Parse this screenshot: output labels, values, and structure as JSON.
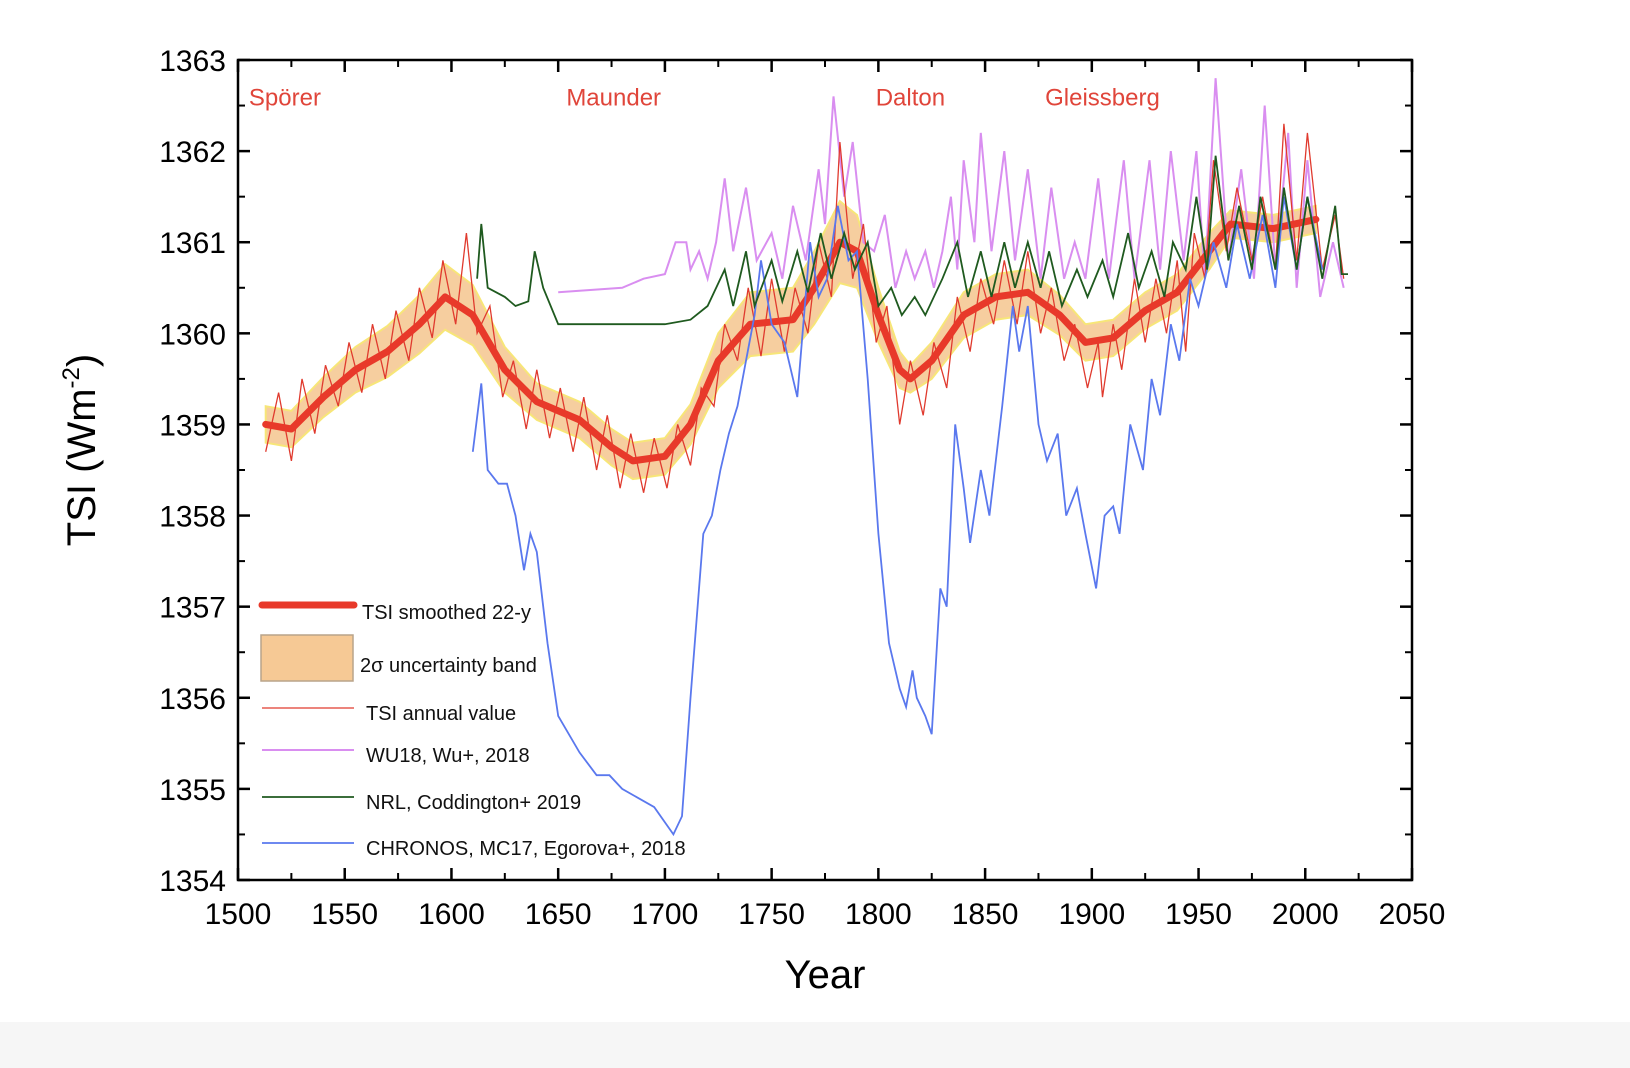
{
  "chart_data": {
    "type": "line",
    "xlabel": "Year",
    "ylabel": {
      "main": "TSI (Wm",
      "sup": "-2",
      "end": ")"
    },
    "xlim": [
      1500,
      2050
    ],
    "ylim": [
      1354,
      1363
    ],
    "xticks": [
      1500,
      1550,
      1600,
      1650,
      1700,
      1750,
      1800,
      1850,
      1900,
      1950,
      2000,
      2050
    ],
    "yticks": [
      1354,
      1355,
      1356,
      1357,
      1358,
      1359,
      1360,
      1361,
      1362,
      1363
    ],
    "grid": false,
    "legend_placement": "bottom-left",
    "annotations": [
      {
        "text": "Spörer",
        "year": 1522,
        "value": 1362.6
      },
      {
        "text": "Maunder",
        "year": 1676,
        "value": 1362.6
      },
      {
        "text": "Dalton",
        "year": 1815,
        "value": 1362.6
      },
      {
        "text": "Gleissberg",
        "year": 1905,
        "value": 1362.6
      }
    ],
    "colors": {
      "smoothed": "#e8392a",
      "band": "#f6c995",
      "band_edge": "#f7e46a",
      "annual": "#e03a2e",
      "wu18": "#d98ef0",
      "nrl": "#1f5a1f",
      "chronos": "#5a78ee",
      "annotation": "#e0453a"
    },
    "series": [
      {
        "key": "band",
        "name": "2σ uncertainty band",
        "x": [
          1513,
          1525,
          1540,
          1555,
          1570,
          1585,
          1597,
          1610,
          1625,
          1640,
          1660,
          1675,
          1685,
          1700,
          1712,
          1725,
          1740,
          1760,
          1770,
          1782,
          1790,
          1800,
          1810,
          1815,
          1825,
          1840,
          1855,
          1870,
          1885,
          1897,
          1910,
          1925,
          1940,
          1955,
          1965,
          1985,
          2005
        ],
        "half_width": [
          0.2,
          0.2,
          0.22,
          0.25,
          0.28,
          0.32,
          0.36,
          0.33,
          0.25,
          0.2,
          0.2,
          0.2,
          0.2,
          0.2,
          0.22,
          0.3,
          0.35,
          0.35,
          0.4,
          0.45,
          0.4,
          0.3,
          0.2,
          0.15,
          0.2,
          0.25,
          0.25,
          0.25,
          0.22,
          0.2,
          0.2,
          0.2,
          0.2,
          0.2,
          0.15,
          0.15,
          0.15
        ]
      },
      {
        "key": "smoothed",
        "name": "TSI smoothed 22-y",
        "x": [
          1513,
          1525,
          1540,
          1555,
          1570,
          1585,
          1597,
          1610,
          1625,
          1640,
          1660,
          1675,
          1685,
          1700,
          1712,
          1725,
          1740,
          1760,
          1770,
          1782,
          1790,
          1800,
          1810,
          1815,
          1825,
          1840,
          1855,
          1870,
          1885,
          1897,
          1910,
          1925,
          1940,
          1955,
          1965,
          1985,
          2005
        ],
        "y": [
          1359.0,
          1358.95,
          1359.3,
          1359.6,
          1359.8,
          1360.1,
          1360.4,
          1360.2,
          1359.6,
          1359.25,
          1359.05,
          1358.75,
          1358.6,
          1358.65,
          1359.0,
          1359.7,
          1360.1,
          1360.15,
          1360.5,
          1361.0,
          1360.9,
          1360.2,
          1359.6,
          1359.5,
          1359.7,
          1360.2,
          1360.4,
          1360.45,
          1360.2,
          1359.9,
          1359.95,
          1360.25,
          1360.45,
          1360.9,
          1361.2,
          1361.15,
          1361.25
        ]
      },
      {
        "key": "annual",
        "name": "TSI annual value",
        "x": [
          1513,
          1519,
          1525,
          1530,
          1536,
          1541,
          1547,
          1552,
          1558,
          1563,
          1569,
          1574,
          1580,
          1585,
          1591,
          1596,
          1602,
          1607,
          1612,
          1618,
          1624,
          1629,
          1635,
          1640,
          1646,
          1651,
          1657,
          1662,
          1668,
          1673,
          1679,
          1684,
          1690,
          1695,
          1701,
          1706,
          1712,
          1717,
          1723,
          1728,
          1734,
          1739,
          1745,
          1750,
          1756,
          1761,
          1767,
          1772,
          1778,
          1782,
          1788,
          1793,
          1799,
          1804,
          1810,
          1815,
          1821,
          1826,
          1832,
          1837,
          1843,
          1848,
          1854,
          1859,
          1865,
          1870,
          1876,
          1881,
          1887,
          1892,
          1898,
          1903,
          1905,
          1910,
          1914,
          1920,
          1925,
          1930,
          1935,
          1940,
          1944,
          1948,
          1953,
          1957,
          1963,
          1968,
          1975,
          1980,
          1986,
          1990,
          1996,
          2001,
          2008,
          2014,
          2018
        ],
        "y": [
          1358.7,
          1359.35,
          1358.6,
          1359.5,
          1358.9,
          1359.65,
          1359.2,
          1359.9,
          1359.35,
          1360.1,
          1359.5,
          1360.25,
          1359.7,
          1360.5,
          1359.95,
          1360.8,
          1360.1,
          1361.1,
          1360.0,
          1360.3,
          1359.3,
          1359.7,
          1358.95,
          1359.6,
          1358.85,
          1359.4,
          1358.7,
          1359.3,
          1358.5,
          1359.1,
          1358.3,
          1358.9,
          1358.25,
          1358.85,
          1358.3,
          1359.0,
          1358.55,
          1359.4,
          1359.2,
          1360.1,
          1359.7,
          1360.5,
          1359.75,
          1360.6,
          1359.8,
          1360.5,
          1360.0,
          1361.0,
          1360.4,
          1362.1,
          1360.6,
          1361.2,
          1359.9,
          1360.3,
          1359.0,
          1359.7,
          1359.1,
          1359.9,
          1359.4,
          1360.4,
          1359.8,
          1360.6,
          1360.1,
          1360.8,
          1360.1,
          1360.9,
          1360.0,
          1360.5,
          1359.7,
          1360.1,
          1359.4,
          1359.9,
          1359.3,
          1360.1,
          1359.6,
          1360.6,
          1359.9,
          1360.6,
          1360.0,
          1360.8,
          1359.8,
          1361.1,
          1360.6,
          1361.9,
          1360.9,
          1361.6,
          1360.8,
          1361.5,
          1360.7,
          1362.3,
          1360.8,
          1362.2,
          1360.7,
          1361.3,
          1360.6
        ]
      },
      {
        "key": "wu18",
        "name": "WU18, Wu+, 2018",
        "x": [
          1650,
          1680,
          1690,
          1700,
          1705,
          1710,
          1712,
          1716,
          1720,
          1724,
          1728,
          1732,
          1738,
          1743,
          1750,
          1755,
          1760,
          1766,
          1772,
          1775,
          1779,
          1784,
          1788,
          1793,
          1798,
          1803,
          1808,
          1813,
          1817,
          1822,
          1826,
          1830,
          1834,
          1837,
          1840,
          1845,
          1848,
          1853,
          1859,
          1864,
          1870,
          1876,
          1881,
          1887,
          1892,
          1897,
          1903,
          1908,
          1915,
          1920,
          1927,
          1932,
          1937,
          1943,
          1949,
          1953,
          1958,
          1964,
          1970,
          1976,
          1981,
          1986,
          1992,
          1996,
          2001,
          2007,
          2013,
          2018
        ],
        "y": [
          1360.45,
          1360.5,
          1360.6,
          1360.65,
          1361.0,
          1361.0,
          1360.7,
          1360.9,
          1360.6,
          1361.0,
          1361.7,
          1360.9,
          1361.6,
          1360.8,
          1361.1,
          1360.6,
          1361.4,
          1360.8,
          1361.8,
          1361.2,
          1362.6,
          1361.5,
          1362.1,
          1361.0,
          1360.9,
          1361.3,
          1360.5,
          1360.9,
          1360.6,
          1360.9,
          1360.5,
          1360.9,
          1361.5,
          1360.7,
          1361.9,
          1361.0,
          1362.2,
          1360.9,
          1362.0,
          1360.8,
          1361.8,
          1360.6,
          1361.6,
          1360.6,
          1361.0,
          1360.6,
          1361.7,
          1360.6,
          1361.9,
          1360.6,
          1361.9,
          1360.7,
          1362.0,
          1360.8,
          1362.0,
          1360.6,
          1362.8,
          1360.8,
          1361.8,
          1360.6,
          1362.5,
          1360.7,
          1362.2,
          1360.5,
          1361.9,
          1360.4,
          1361.0,
          1360.5
        ]
      },
      {
        "key": "nrl",
        "name": "NRL, Coddington+ 2019",
        "x": [
          1612,
          1614,
          1617,
          1625,
          1630,
          1636,
          1639,
          1643,
          1650,
          1700,
          1712,
          1720,
          1728,
          1732,
          1738,
          1742,
          1750,
          1755,
          1762,
          1767,
          1773,
          1778,
          1784,
          1789,
          1795,
          1800,
          1806,
          1811,
          1817,
          1822,
          1830,
          1837,
          1842,
          1848,
          1853,
          1859,
          1864,
          1870,
          1876,
          1880,
          1886,
          1893,
          1898,
          1905,
          1910,
          1917,
          1922,
          1928,
          1934,
          1938,
          1944,
          1949,
          1954,
          1958,
          1964,
          1969,
          1975,
          1979,
          1986,
          1990,
          1996,
          2001,
          2008,
          2014,
          2017,
          2020
        ],
        "y": [
          1360.6,
          1361.2,
          1360.5,
          1360.4,
          1360.3,
          1360.35,
          1360.9,
          1360.5,
          1360.1,
          1360.1,
          1360.15,
          1360.3,
          1360.7,
          1360.3,
          1360.9,
          1360.3,
          1360.8,
          1360.35,
          1360.9,
          1360.45,
          1361.1,
          1360.6,
          1361.1,
          1360.7,
          1361.0,
          1360.3,
          1360.5,
          1360.2,
          1360.4,
          1360.2,
          1360.6,
          1361.0,
          1360.4,
          1360.9,
          1360.4,
          1361.0,
          1360.5,
          1361.0,
          1360.5,
          1360.9,
          1360.3,
          1360.7,
          1360.4,
          1360.8,
          1360.4,
          1361.1,
          1360.5,
          1360.9,
          1360.4,
          1361.0,
          1360.7,
          1361.5,
          1360.7,
          1361.95,
          1360.8,
          1361.4,
          1360.7,
          1361.5,
          1360.7,
          1361.6,
          1360.7,
          1361.5,
          1360.6,
          1361.4,
          1360.65,
          1360.65
        ]
      },
      {
        "key": "chronos",
        "name": "CHRONOS, MC17, Egorova+, 2018",
        "x": [
          1610,
          1614,
          1617,
          1622,
          1626,
          1630,
          1634,
          1637,
          1640,
          1645,
          1650,
          1660,
          1668,
          1674,
          1680,
          1695,
          1704,
          1708,
          1712,
          1718,
          1722,
          1726,
          1730,
          1734,
          1738,
          1742,
          1745,
          1750,
          1756,
          1762,
          1768,
          1772,
          1776,
          1781,
          1786,
          1790,
          1795,
          1800,
          1805,
          1810,
          1813,
          1816,
          1818,
          1822,
          1825,
          1829,
          1832,
          1836,
          1840,
          1843,
          1848,
          1852,
          1858,
          1863,
          1866,
          1870,
          1875,
          1879,
          1884,
          1888,
          1893,
          1897,
          1902,
          1906,
          1910,
          1913,
          1918,
          1924,
          1928,
          1932,
          1937,
          1941,
          1946,
          1950,
          1957,
          1963,
          1968,
          1974,
          1980,
          1986,
          1990,
          1996,
          2001,
          2008
        ],
        "y": [
          1358.7,
          1359.45,
          1358.5,
          1358.35,
          1358.35,
          1358.0,
          1357.4,
          1357.8,
          1357.6,
          1356.6,
          1355.8,
          1355.4,
          1355.15,
          1355.15,
          1355.0,
          1354.8,
          1354.5,
          1354.7,
          1356.0,
          1357.8,
          1358.0,
          1358.5,
          1358.9,
          1359.2,
          1359.7,
          1360.2,
          1360.8,
          1360.1,
          1359.9,
          1359.3,
          1361.0,
          1360.4,
          1360.6,
          1361.4,
          1360.8,
          1360.9,
          1359.5,
          1357.8,
          1356.6,
          1356.1,
          1355.9,
          1356.3,
          1356.0,
          1355.8,
          1355.6,
          1357.2,
          1357.0,
          1359.0,
          1358.3,
          1357.7,
          1358.5,
          1358.0,
          1359.2,
          1360.3,
          1359.8,
          1360.3,
          1359.0,
          1358.6,
          1358.9,
          1358.0,
          1358.3,
          1357.8,
          1357.2,
          1358.0,
          1358.1,
          1357.8,
          1359.0,
          1358.5,
          1359.5,
          1359.1,
          1360.1,
          1359.7,
          1360.6,
          1360.3,
          1361.0,
          1360.5,
          1361.2,
          1360.6,
          1361.3,
          1360.5,
          1361.5,
          1360.7,
          1361.5,
          1360.7
        ]
      }
    ],
    "legend": [
      {
        "key": "smoothed",
        "label": "TSI smoothed 22-y"
      },
      {
        "key": "band",
        "label": "2σ uncertainty band"
      },
      {
        "key": "annual",
        "label": "TSI annual value"
      },
      {
        "key": "wu18",
        "label": "WU18, Wu+, 2018"
      },
      {
        "key": "nrl",
        "label": "NRL, Coddington+ 2019"
      },
      {
        "key": "chronos",
        "label": "CHRONOS, MC17, Egorova+, 2018"
      }
    ]
  }
}
